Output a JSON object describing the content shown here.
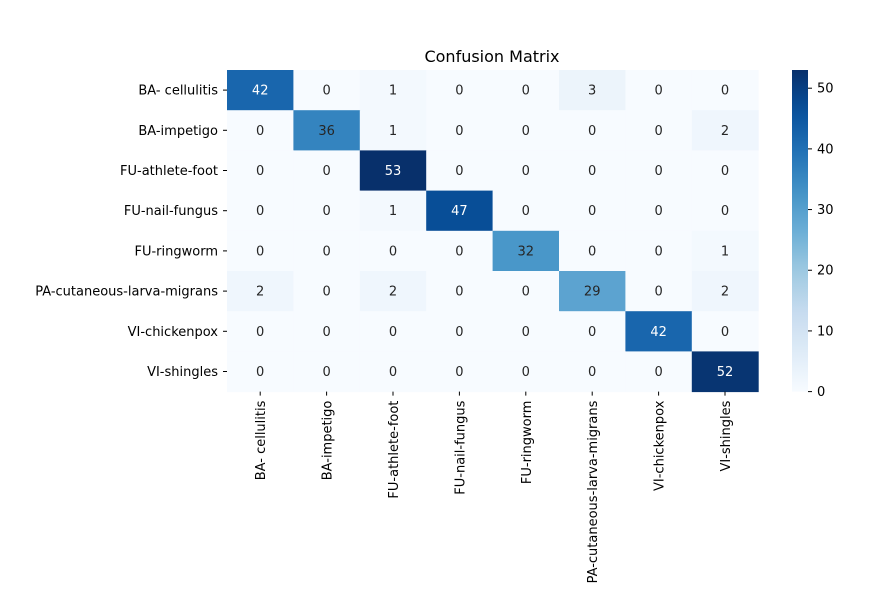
{
  "chart_data": {
    "type": "heatmap",
    "title": "Confusion Matrix",
    "xlabel": "",
    "ylabel": "",
    "row_labels": [
      "BA- cellulitis",
      "BA-impetigo",
      "FU-athlete-foot",
      "FU-nail-fungus",
      "FU-ringworm",
      "PA-cutaneous-larva-migrans",
      "VI-chickenpox",
      "VI-shingles"
    ],
    "col_labels": [
      "BA- cellulitis",
      "BA-impetigo",
      "FU-athlete-foot",
      "FU-nail-fungus",
      "FU-ringworm",
      "PA-cutaneous-larva-migrans",
      "VI-chickenpox",
      "VI-shingles"
    ],
    "values": [
      [
        42,
        0,
        1,
        0,
        0,
        3,
        0,
        0
      ],
      [
        0,
        36,
        1,
        0,
        0,
        0,
        0,
        2
      ],
      [
        0,
        0,
        53,
        0,
        0,
        0,
        0,
        0
      ],
      [
        0,
        0,
        1,
        47,
        0,
        0,
        0,
        0
      ],
      [
        0,
        0,
        0,
        0,
        32,
        0,
        0,
        1
      ],
      [
        2,
        0,
        2,
        0,
        0,
        29,
        0,
        2
      ],
      [
        0,
        0,
        0,
        0,
        0,
        0,
        42,
        0
      ],
      [
        0,
        0,
        0,
        0,
        0,
        0,
        0,
        52
      ]
    ],
    "colormap": "Blues",
    "color_range": [
      0,
      53
    ],
    "colorbar_ticks": [
      0,
      10,
      20,
      30,
      40,
      50
    ],
    "grid": false,
    "annotations": true
  }
}
